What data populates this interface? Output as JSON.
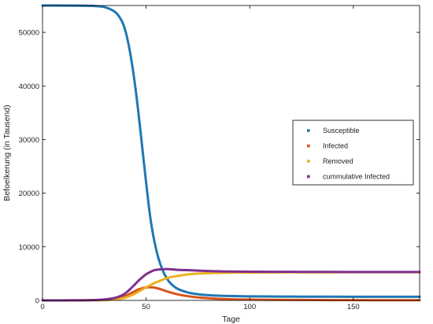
{
  "chart_data": {
    "type": "line",
    "title": "",
    "xlabel": "Tage",
    "ylabel": "Befoelkerung (in Tausend)",
    "xlim": [
      0,
      182
    ],
    "ylim": [
      0,
      55000
    ],
    "x_ticks": [
      0,
      50,
      100,
      150
    ],
    "y_ticks": [
      0,
      10000,
      20000,
      30000,
      40000,
      50000
    ],
    "grid": false,
    "legend_position": "right",
    "x": [
      0,
      10,
      20,
      25,
      30,
      35,
      38,
      40,
      42,
      44,
      46,
      48,
      50,
      52,
      54,
      56,
      58,
      60,
      62,
      65,
      70,
      75,
      80,
      85,
      90,
      100,
      110,
      120,
      140,
      160,
      182
    ],
    "series": [
      {
        "name": "Susceptible",
        "color": "#1f77b4",
        "values": [
          55000,
          54990,
          54960,
          54900,
          54700,
          53800,
          52300,
          50300,
          46800,
          42000,
          36000,
          29000,
          22000,
          15500,
          11000,
          7800,
          5600,
          4100,
          3100,
          2200,
          1500,
          1150,
          980,
          880,
          820,
          760,
          730,
          710,
          690,
          680,
          680
        ]
      },
      {
        "name": "Infected",
        "color": "#d95319",
        "values": [
          2,
          5,
          20,
          50,
          120,
          300,
          550,
          800,
          1200,
          1600,
          2000,
          2250,
          2420,
          2450,
          2380,
          2200,
          1950,
          1700,
          1450,
          1150,
          800,
          560,
          400,
          290,
          220,
          150,
          110,
          90,
          60,
          40,
          30
        ]
      },
      {
        "name": "Removed",
        "color": "#edb120",
        "values": [
          0,
          0,
          5,
          20,
          60,
          180,
          330,
          520,
          800,
          1150,
          1550,
          2000,
          2450,
          2850,
          3250,
          3550,
          3850,
          4150,
          4350,
          4550,
          4850,
          5000,
          5080,
          5130,
          5170,
          5210,
          5230,
          5240,
          5250,
          5260,
          5260
        ]
      },
      {
        "name": "cummulative  Infected",
        "color": "#7e2f8e",
        "values": [
          2,
          5,
          25,
          70,
          180,
          480,
          880,
          1320,
          2000,
          2750,
          3550,
          4250,
          4870,
          5300,
          5630,
          5750,
          5800,
          5850,
          5800,
          5700,
          5650,
          5560,
          5480,
          5420,
          5390,
          5360,
          5340,
          5330,
          5310,
          5300,
          5290
        ]
      }
    ]
  }
}
